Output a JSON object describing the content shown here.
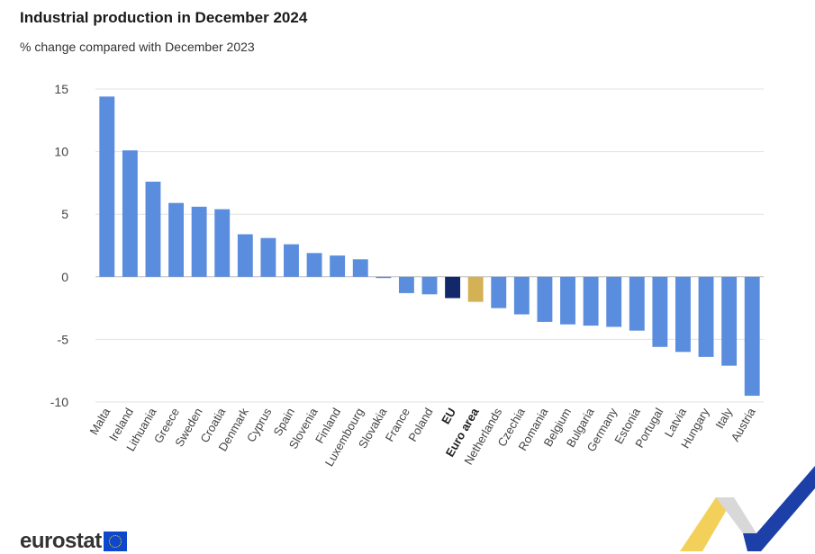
{
  "header": {
    "title": "Industrial production in December 2024",
    "subtitle": "% change compared with December 2023"
  },
  "footer": {
    "logo_text": "eurostat"
  },
  "colors": {
    "country": "#5b8dde",
    "eu": "#12286b",
    "euro_area": "#d4b154",
    "grid": "#e2e2e2",
    "zero_line": "#bbbbbb"
  },
  "chart_data": {
    "type": "bar",
    "title": "Industrial production in December 2024",
    "subtitle": "% change compared with December 2023",
    "xlabel": "",
    "ylabel": "",
    "ylim": [
      -10,
      15
    ],
    "yticks": [
      15,
      10,
      5,
      0,
      -5,
      -10
    ],
    "grid": true,
    "categories": [
      "Malta",
      "Ireland",
      "Lithuania",
      "Greece",
      "Sweden",
      "Croatia",
      "Denmark",
      "Cyprus",
      "Spain",
      "Slovenia",
      "Finland",
      "Luxembourg",
      "Slovakia",
      "France",
      "Poland",
      "EU",
      "Euro area",
      "Netherlands",
      "Czechia",
      "Romania",
      "Belgium",
      "Bulgaria",
      "Germany",
      "Estonia",
      "Portugal",
      "Latvia",
      "Hungary",
      "Italy",
      "Austria"
    ],
    "values": [
      14.4,
      10.1,
      7.6,
      5.9,
      5.6,
      5.4,
      3.4,
      3.1,
      2.6,
      1.9,
      1.7,
      1.4,
      -0.1,
      -1.3,
      -1.4,
      -1.7,
      -2.0,
      -2.5,
      -3.0,
      -3.6,
      -3.8,
      -3.9,
      -4.0,
      -4.3,
      -5.6,
      -6.0,
      -6.4,
      -7.1,
      -9.5
    ],
    "highlight": {
      "EU": "eu",
      "Euro area": "euro_area"
    }
  }
}
